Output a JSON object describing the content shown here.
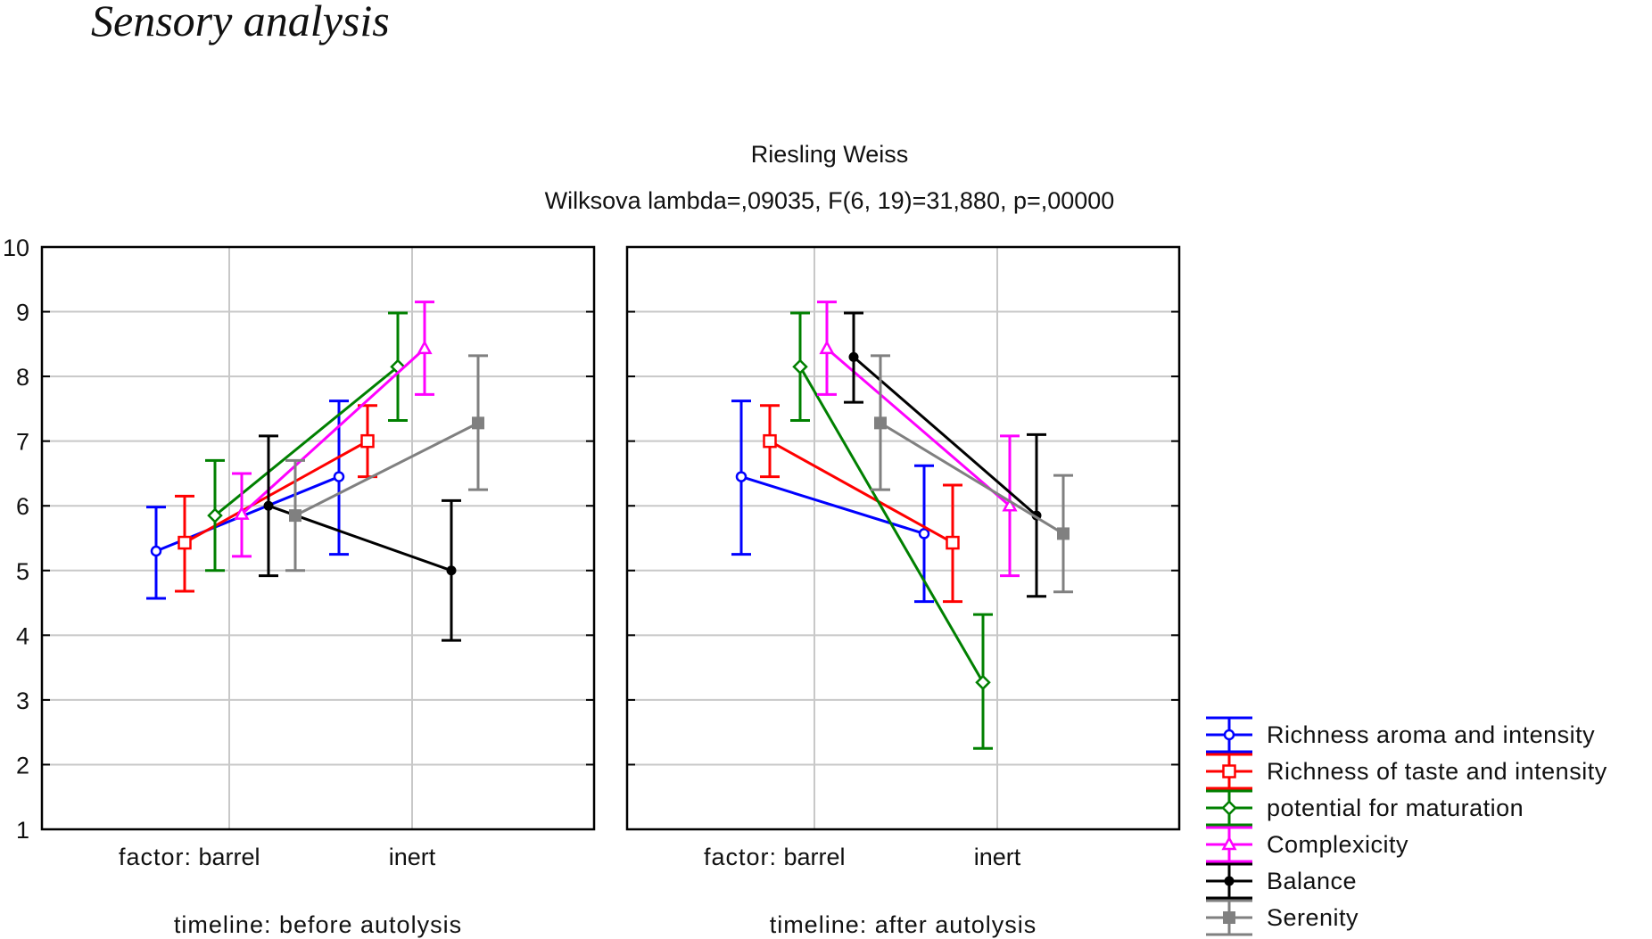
{
  "page": {
    "heading": "Sensory analysis"
  },
  "chart_data": {
    "type": "line",
    "title": "Riesling Weiss",
    "subtitle": "Wilksova lambda=,09035, F(6, 19)=31,880, p=,00000",
    "ylim": [
      1,
      10
    ],
    "y_ticks": [
      1,
      2,
      3,
      4,
      5,
      6,
      7,
      8,
      9,
      10
    ],
    "grid": true,
    "error_bars": true,
    "legend_position": "bottom-right",
    "x_factor_label": "factor:",
    "categories": [
      "barrel",
      "inert"
    ],
    "panels": [
      {
        "label": "timeline: before autolysis"
      },
      {
        "label": "timeline: after autolysis"
      }
    ],
    "series": [
      {
        "name": "Richness aroma and intensity",
        "color": "#0000ff",
        "marker": "circle",
        "values": [
          [
            5.3,
            6.45
          ],
          [
            6.45,
            5.57
          ]
        ],
        "lower": [
          [
            4.57,
            5.25
          ],
          [
            5.25,
            4.52
          ]
        ],
        "upper": [
          [
            5.98,
            7.62
          ],
          [
            7.62,
            6.62
          ]
        ]
      },
      {
        "name": "Richness of taste and intensity",
        "color": "#ff0000",
        "marker": "square",
        "values": [
          [
            5.43,
            7.0
          ],
          [
            7.0,
            5.43
          ]
        ],
        "lower": [
          [
            4.68,
            6.45
          ],
          [
            6.45,
            4.52
          ]
        ],
        "upper": [
          [
            6.15,
            7.55
          ],
          [
            7.55,
            6.32
          ]
        ]
      },
      {
        "name": "potential for maturation",
        "color": "#008000",
        "marker": "diamond",
        "values": [
          [
            5.85,
            8.15
          ],
          [
            8.15,
            3.27
          ]
        ],
        "lower": [
          [
            5.0,
            7.32
          ],
          [
            7.32,
            2.25
          ]
        ],
        "upper": [
          [
            6.7,
            8.98
          ],
          [
            8.98,
            4.32
          ]
        ]
      },
      {
        "name": "Complexicity",
        "color": "#ff00ff",
        "marker": "triangle",
        "values": [
          [
            5.87,
            8.43
          ],
          [
            8.43,
            6.0
          ]
        ],
        "lower": [
          [
            5.22,
            7.72
          ],
          [
            7.72,
            4.92
          ]
        ],
        "upper": [
          [
            6.5,
            9.15
          ],
          [
            9.15,
            7.08
          ]
        ]
      },
      {
        "name": "Balance",
        "color": "#000000",
        "marker": "dot",
        "values": [
          [
            6.0,
            5.0
          ],
          [
            8.3,
            5.85
          ]
        ],
        "lower": [
          [
            4.92,
            3.92
          ],
          [
            7.6,
            4.6
          ]
        ],
        "upper": [
          [
            7.08,
            6.08
          ],
          [
            8.98,
            7.1
          ]
        ]
      },
      {
        "name": "Serenity",
        "color": "#808080",
        "marker": "filled-square",
        "values": [
          [
            5.85,
            7.28
          ],
          [
            7.28,
            5.57
          ]
        ],
        "lower": [
          [
            5.0,
            6.25
          ],
          [
            6.25,
            4.67
          ]
        ],
        "upper": [
          [
            6.7,
            8.32
          ],
          [
            8.32,
            6.47
          ]
        ]
      }
    ]
  }
}
